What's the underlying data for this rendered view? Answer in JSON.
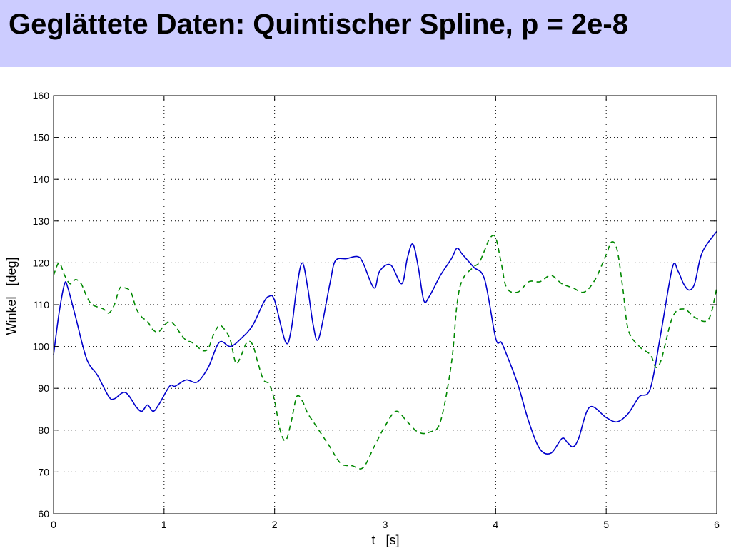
{
  "slide": {
    "title": "Geglättete Daten: Quintischer Spline, p = 2e-8"
  },
  "chart_data": {
    "type": "line",
    "title": "",
    "xlabel": "t   [s]",
    "ylabel": "Winkel   [deg]",
    "xlim": [
      0,
      6
    ],
    "ylim": [
      60,
      160
    ],
    "xticks": [
      0,
      1,
      2,
      3,
      4,
      5,
      6
    ],
    "yticks": [
      60,
      70,
      80,
      90,
      100,
      110,
      120,
      130,
      140,
      150,
      160
    ],
    "grid": true,
    "series": [
      {
        "color": "#0000cc",
        "style": "solid",
        "x": [
          0,
          0.05,
          0.1,
          0.13,
          0.2,
          0.3,
          0.4,
          0.5,
          0.55,
          0.65,
          0.75,
          0.8,
          0.85,
          0.9,
          0.95,
          1.05,
          1.1,
          1.2,
          1.3,
          1.4,
          1.5,
          1.6,
          1.7,
          1.8,
          1.9,
          1.95,
          2.0,
          2.1,
          2.15,
          2.2,
          2.25,
          2.3,
          2.35,
          2.4,
          2.5,
          2.55,
          2.65,
          2.75,
          2.8,
          2.9,
          2.95,
          3.05,
          3.15,
          3.2,
          3.25,
          3.3,
          3.35,
          3.4,
          3.5,
          3.6,
          3.65,
          3.7,
          3.8,
          3.9,
          4.0,
          4.05,
          4.1,
          4.2,
          4.3,
          4.4,
          4.5,
          4.6,
          4.65,
          4.7,
          4.75,
          4.85,
          5.0,
          5.1,
          5.2,
          5.3,
          5.4,
          5.5,
          5.6,
          5.65,
          5.7,
          5.75,
          5.8,
          5.85,
          5.9,
          6.0
        ],
        "y": [
          98,
          108,
          115,
          114,
          107,
          97,
          93,
          88,
          87.5,
          89,
          85.5,
          84.5,
          86,
          84.5,
          86,
          90.5,
          90.5,
          92,
          91.5,
          95,
          101,
          100,
          102,
          105,
          110.5,
          112,
          111,
          101,
          104,
          114,
          120,
          114,
          105,
          102,
          115,
          120.5,
          121,
          121.5,
          120,
          114,
          118,
          119.5,
          115,
          121,
          124.5,
          119,
          111,
          112,
          117,
          121,
          123.5,
          122,
          119,
          116,
          102,
          101,
          98,
          91,
          82,
          75.5,
          74.5,
          78,
          77,
          76,
          78,
          85.5,
          83,
          82,
          84,
          88,
          90,
          104,
          119,
          118,
          115,
          113.5,
          115,
          121,
          124,
          127.5
        ]
      },
      {
        "color": "#008800",
        "style": "dashed",
        "x": [
          0,
          0.05,
          0.1,
          0.15,
          0.2,
          0.25,
          0.3,
          0.35,
          0.45,
          0.5,
          0.55,
          0.6,
          0.65,
          0.7,
          0.75,
          0.8,
          0.85,
          0.9,
          0.95,
          1.0,
          1.05,
          1.1,
          1.15,
          1.2,
          1.25,
          1.3,
          1.35,
          1.4,
          1.45,
          1.5,
          1.55,
          1.6,
          1.65,
          1.7,
          1.75,
          1.8,
          1.85,
          1.9,
          1.95,
          2.0,
          2.05,
          2.1,
          2.15,
          2.2,
          2.25,
          2.3,
          2.35,
          2.4,
          2.5,
          2.6,
          2.7,
          2.8,
          2.9,
          3.0,
          3.1,
          3.2,
          3.3,
          3.4,
          3.5,
          3.6,
          3.65,
          3.7,
          3.8,
          3.85,
          3.9,
          3.95,
          4.0,
          4.05,
          4.1,
          4.2,
          4.3,
          4.4,
          4.5,
          4.6,
          4.7,
          4.8,
          4.9,
          5.0,
          5.05,
          5.1,
          5.15,
          5.2,
          5.3,
          5.4,
          5.45,
          5.5,
          5.6,
          5.7,
          5.8,
          5.9,
          5.95,
          6.0
        ],
        "y": [
          117,
          120,
          117,
          115,
          116,
          115,
          112,
          110,
          109,
          108,
          110,
          114,
          114,
          113,
          109,
          107,
          106,
          104,
          103.5,
          105,
          106,
          105,
          103,
          101.5,
          101,
          100,
          99,
          99.5,
          103,
          105,
          104,
          101.5,
          96,
          98,
          101,
          100.5,
          96,
          92,
          91,
          87,
          80,
          77.5,
          82,
          88,
          87,
          84,
          82,
          80,
          76,
          72,
          71.5,
          71,
          76,
          81,
          84.5,
          82,
          79.5,
          79.5,
          82,
          96,
          110,
          116,
          119,
          120,
          123,
          126,
          126,
          120,
          114,
          113,
          115.5,
          115.5,
          117,
          115,
          114,
          113,
          116,
          122,
          125,
          123,
          114,
          104,
          100,
          98,
          95,
          97,
          107,
          109,
          107,
          106,
          108,
          114
        ]
      }
    ]
  }
}
